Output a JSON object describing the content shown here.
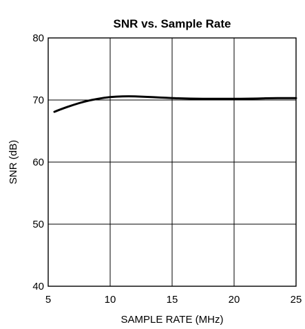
{
  "chart_data": {
    "type": "line",
    "title": "SNR vs. Sample Rate",
    "xlabel": "SAMPLE RATE (MHz)",
    "ylabel": "SNR (dB)",
    "xlim": [
      5,
      25
    ],
    "ylim": [
      40,
      80
    ],
    "x_ticks": [
      5,
      10,
      15,
      20,
      25
    ],
    "y_ticks": [
      40,
      50,
      60,
      70,
      80
    ],
    "grid": true,
    "legend": "none",
    "series": [
      {
        "x": [
          5.5,
          6,
          7,
          8,
          9,
          10,
          11,
          12,
          13,
          14,
          15,
          16,
          17,
          18,
          19,
          20,
          21,
          22,
          23,
          24,
          25
        ],
        "y": [
          68.1,
          68.5,
          69.2,
          69.8,
          70.2,
          70.5,
          70.6,
          70.6,
          70.5,
          70.4,
          70.3,
          70.25,
          70.2,
          70.2,
          70.2,
          70.2,
          70.2,
          70.25,
          70.3,
          70.3,
          70.3
        ]
      }
    ],
    "colors": {
      "line": "#000000",
      "grid": "#000000",
      "frame": "#000000"
    }
  }
}
